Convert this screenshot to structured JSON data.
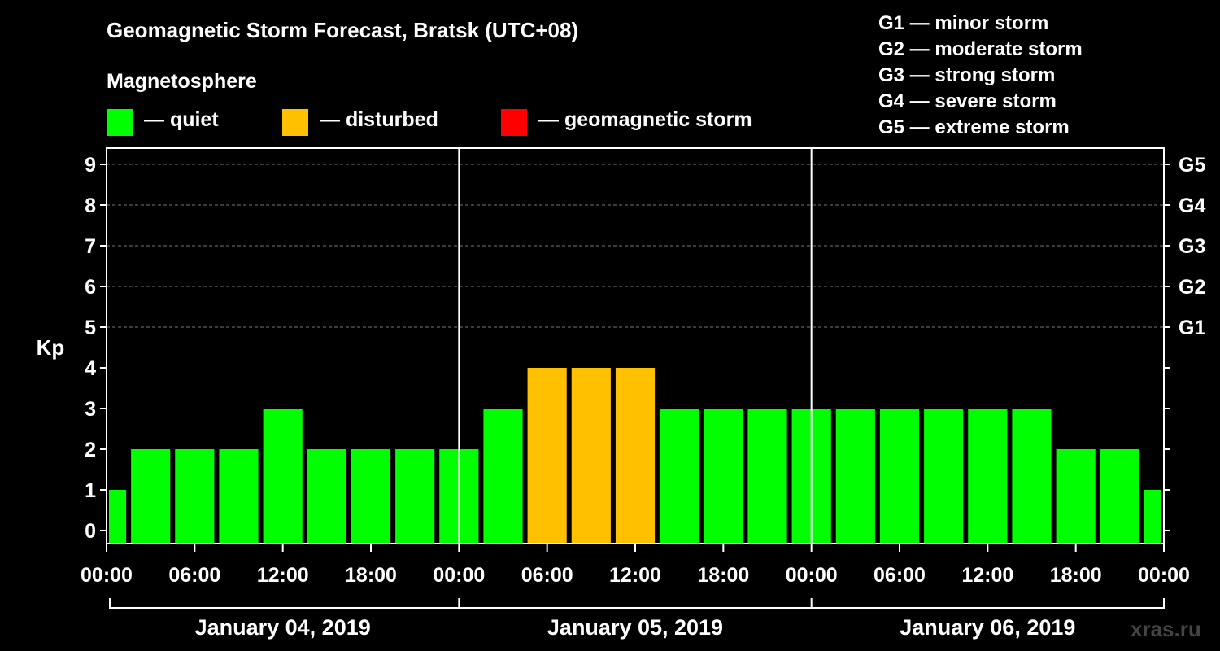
{
  "title": "Geomagnetic Storm Forecast, Bratsk (UTC+08)",
  "subtitle": "Magnetosphere",
  "legend": [
    {
      "label": "— quiet",
      "color": "#00ff00"
    },
    {
      "label": "— disturbed",
      "color": "#ffc000"
    },
    {
      "label": "— geomagnetic storm",
      "color": "#ff0000"
    }
  ],
  "storm_levels": [
    "G1 — minor storm",
    "G2 — moderate storm",
    "G3 — strong storm",
    "G4 — severe storm",
    "G5 — extreme storm"
  ],
  "watermark": "xras.ru",
  "chart_data": {
    "type": "bar",
    "ylabel": "Kp",
    "ylim": [
      0,
      9
    ],
    "y_ticks": [
      "0",
      "1",
      "2",
      "3",
      "4",
      "5",
      "6",
      "7",
      "8",
      "9"
    ],
    "right_ticks": [
      {
        "kp": 5,
        "label": "G1"
      },
      {
        "kp": 6,
        "label": "G2"
      },
      {
        "kp": 7,
        "label": "G3"
      },
      {
        "kp": 8,
        "label": "G4"
      },
      {
        "kp": 9,
        "label": "G5"
      }
    ],
    "x_tick_labels": [
      "00:00",
      "06:00",
      "12:00",
      "18:00",
      "00:00",
      "06:00",
      "12:00",
      "18:00",
      "00:00",
      "06:00",
      "12:00",
      "18:00",
      "00:00"
    ],
    "days": [
      "January 04, 2019",
      "January 05, 2019",
      "January 06, 2019"
    ],
    "interval_hours": 3,
    "values": [
      1,
      2,
      2,
      2,
      3,
      2,
      2,
      2,
      2,
      3,
      4,
      4,
      4,
      3,
      3,
      3,
      3,
      3,
      3,
      3,
      3,
      3,
      2,
      2,
      1
    ],
    "colors": {
      "quiet": "#00ff00",
      "disturbed": "#ffc000",
      "storm": "#ff0000"
    }
  }
}
